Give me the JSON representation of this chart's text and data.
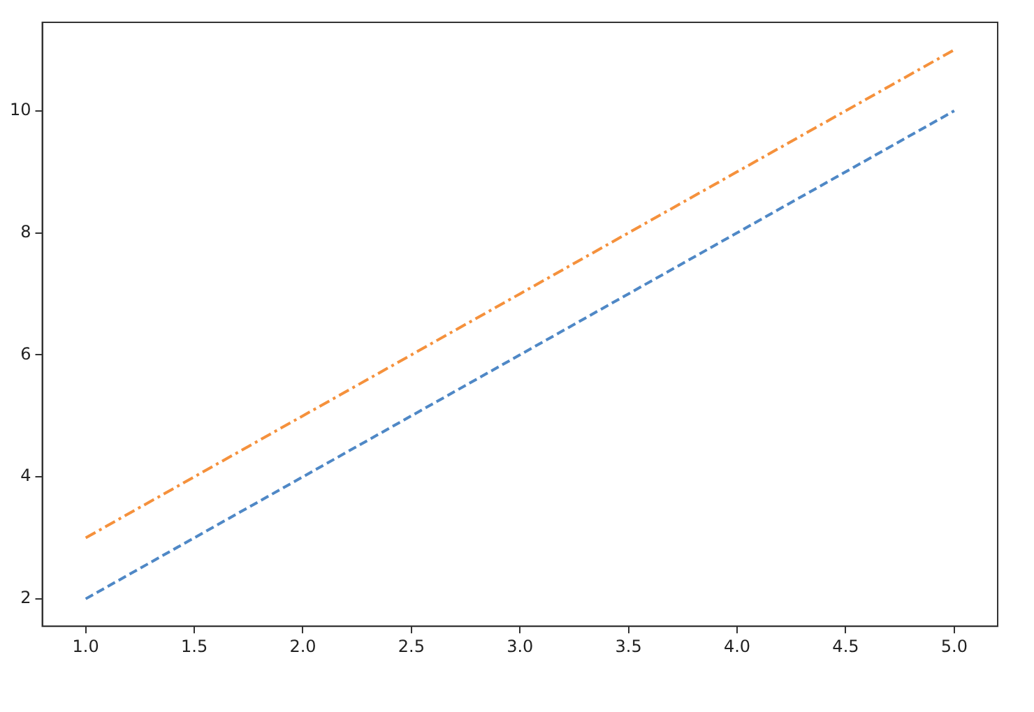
{
  "chart_data": {
    "type": "line",
    "x": [
      1,
      2,
      3,
      4,
      5
    ],
    "series": [
      {
        "color": "#4f88c6",
        "values": [
          2,
          4,
          6,
          8,
          10
        ],
        "line_style": "dashed"
      },
      {
        "color": "#f5913c",
        "values": [
          3,
          5,
          7,
          9,
          11
        ],
        "line_style": "dashdot"
      }
    ],
    "xlim": [
      0.8,
      5.2
    ],
    "xticks": [
      {
        "value": 1,
        "label": "1.0"
      },
      {
        "value": 1.5,
        "label": "1.5"
      },
      {
        "value": 2,
        "label": "2.0"
      },
      {
        "value": 2.5,
        "label": "2.5"
      },
      {
        "value": 3,
        "label": "3.0"
      },
      {
        "value": 3.5,
        "label": "3.5"
      },
      {
        "value": 4,
        "label": "4.0"
      },
      {
        "value": 4.5,
        "label": "4.5"
      },
      {
        "value": 5,
        "label": "5.0"
      }
    ],
    "ylim": [
      1.55,
      11.45
    ],
    "yticks": [
      2,
      4,
      6,
      8,
      10
    ],
    "grid": false,
    "legend": false,
    "marker": "none"
  }
}
